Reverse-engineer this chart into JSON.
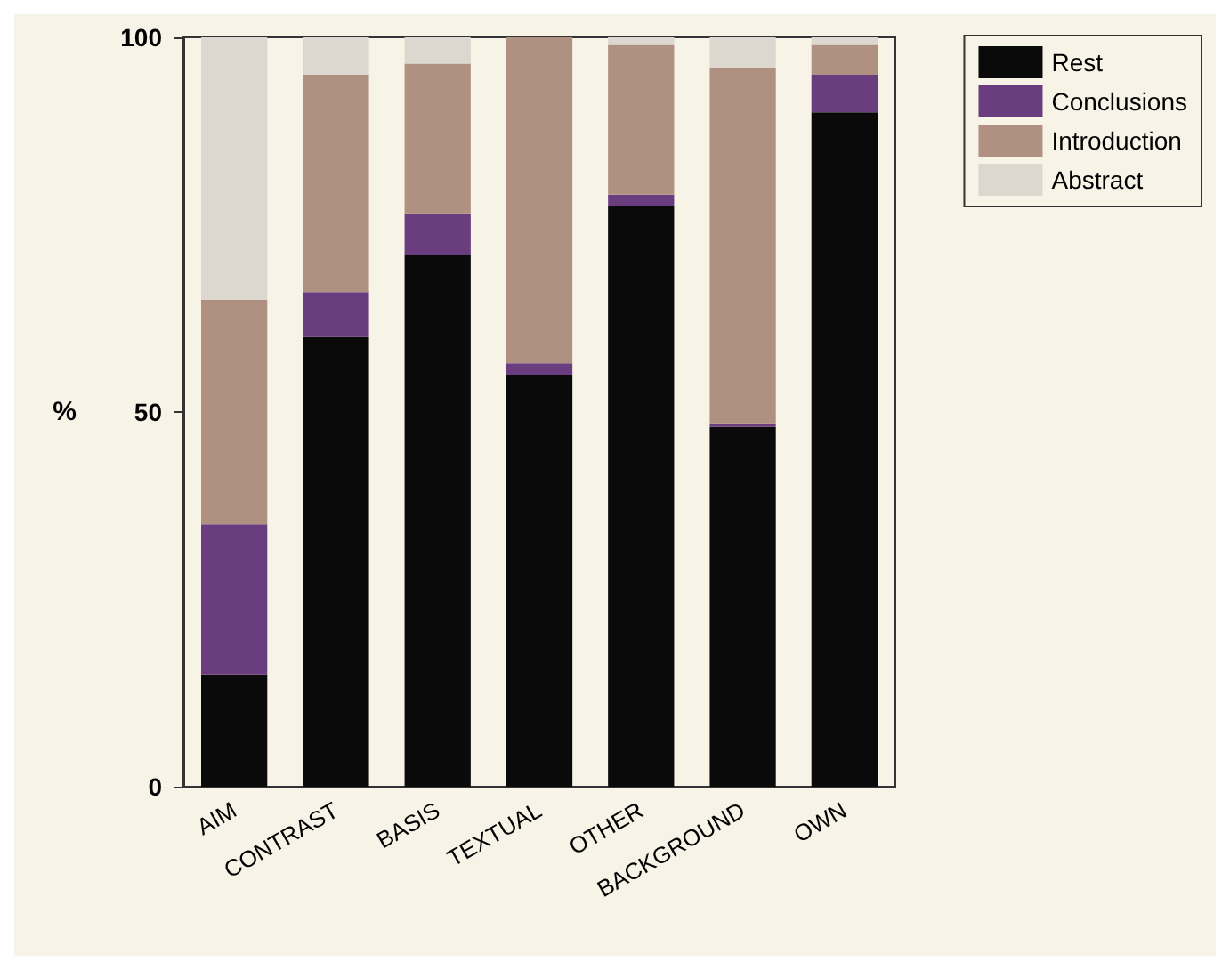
{
  "chart_data": {
    "type": "bar",
    "stacked": true,
    "ylabel": "%",
    "categories": [
      "AIM",
      "CONTRAST",
      "BASIS",
      "TEXTUAL",
      "OTHER",
      "BACKGROUND",
      "OWN"
    ],
    "series": [
      {
        "name": "Rest",
        "color": "#0a0a0a",
        "values": [
          15,
          60,
          71,
          55,
          77.5,
          48,
          90
        ]
      },
      {
        "name": "Conclusions",
        "color": "#6a3d7e",
        "values": [
          20,
          6,
          5.5,
          1.5,
          1.5,
          0.5,
          5
        ]
      },
      {
        "name": "Introduction",
        "color": "#b09080",
        "values": [
          30,
          29,
          20,
          43.5,
          20,
          47.5,
          4
        ]
      },
      {
        "name": "Abstract",
        "color": "#dcd8d0",
        "values": [
          35,
          5,
          3.5,
          0,
          1,
          4,
          1
        ]
      }
    ],
    "ylim": [
      0,
      100
    ],
    "yticks": [
      0,
      50,
      100
    ],
    "grid": false,
    "legend": "top right"
  }
}
